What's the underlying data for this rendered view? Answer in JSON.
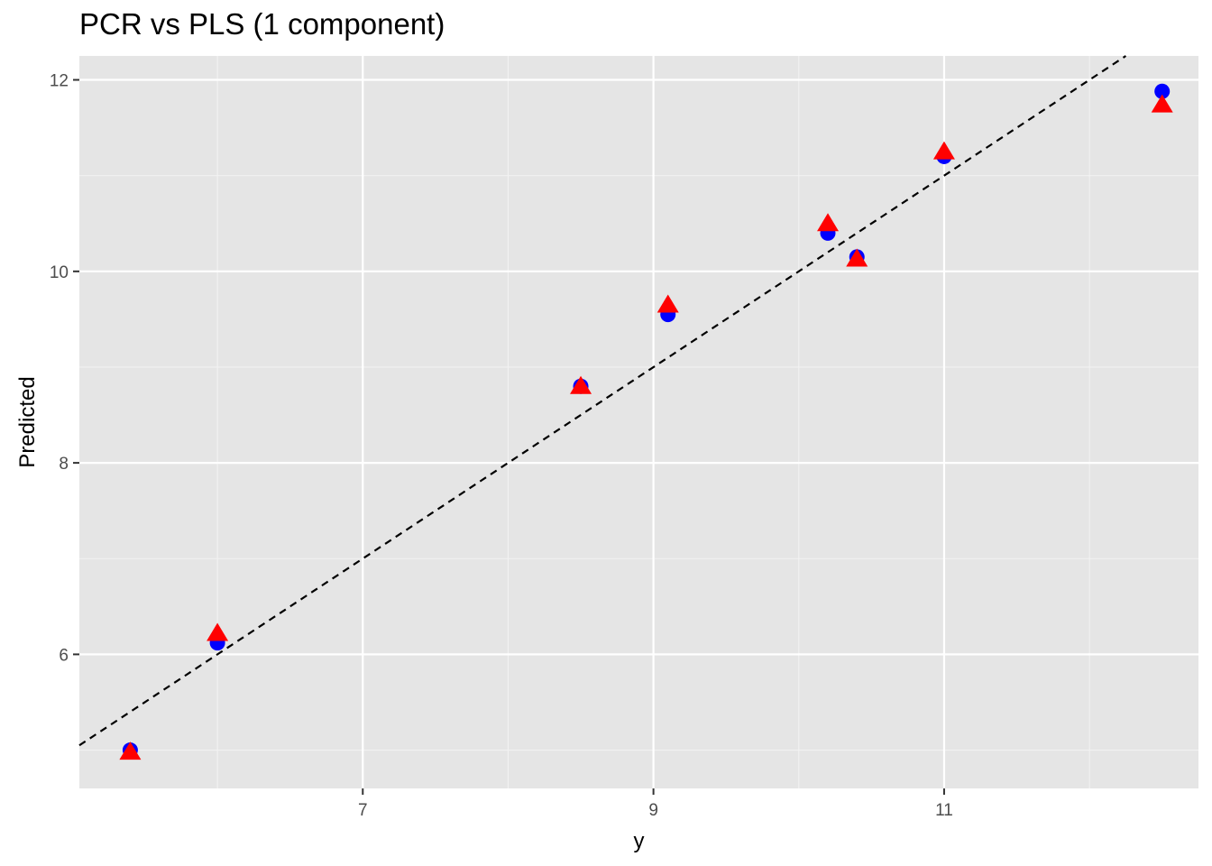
{
  "chart_data": {
    "type": "scatter",
    "title": "PCR vs PLS (1 component)",
    "xlabel": "y",
    "ylabel": "Predicted",
    "xlim": [
      5.05,
      12.75
    ],
    "ylim": [
      4.6,
      12.25
    ],
    "x_major_ticks": [
      7,
      9,
      11
    ],
    "x_minor_ticks": [
      6,
      8,
      10,
      12
    ],
    "x_tick_labels": [
      "7",
      "9",
      "11"
    ],
    "y_major_ticks": [
      6,
      8,
      10,
      12
    ],
    "y_minor_ticks": [
      5,
      7,
      9,
      11
    ],
    "y_tick_labels": [
      "6",
      "8",
      "10",
      "12"
    ],
    "grid": true,
    "background": "#e5e5e5",
    "reference_line": {
      "style": "dashed",
      "color": "#000000",
      "slope": 1,
      "intercept": 0
    },
    "series": [
      {
        "marker": "circle",
        "color": "#0000ff",
        "x": [
          5.4,
          6.0,
          8.5,
          9.1,
          10.2,
          10.4,
          11.0,
          12.5
        ],
        "y": [
          5.0,
          6.12,
          8.8,
          9.55,
          10.4,
          10.15,
          11.2,
          11.88
        ]
      },
      {
        "marker": "triangle",
        "color": "#ff0000",
        "x": [
          5.4,
          6.0,
          8.5,
          9.1,
          10.2,
          10.4,
          11.0,
          12.5
        ],
        "y": [
          4.98,
          6.22,
          8.8,
          9.65,
          10.5,
          10.13,
          11.25,
          11.74
        ]
      }
    ]
  }
}
